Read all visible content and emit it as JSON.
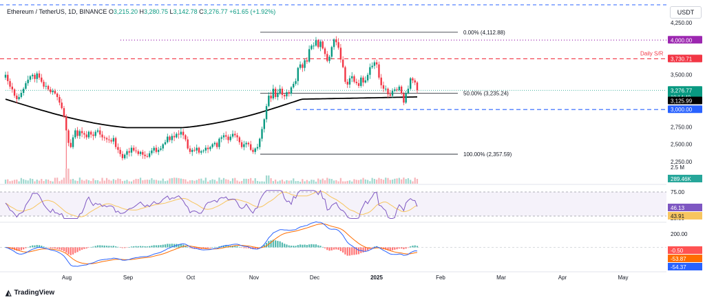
{
  "header": {
    "title": "Ethereum / TetherUS, 1D, BINANCE",
    "o_label": "O",
    "o": "3,215.20",
    "h_label": "H",
    "h": "3,280.75",
    "l_label": "L",
    "l": "3,142.78",
    "c_label": "C",
    "c": "3,276.77",
    "change": "+61.65 (+1.92%)",
    "currency": "USDT"
  },
  "brand": {
    "label": "TradingView",
    "logo": "tradingview-logo-icon"
  },
  "colors": {
    "up": "#089981",
    "down": "#f23645",
    "ma200": "#000000",
    "resistance": "#f23645",
    "support": "#2962ff",
    "psych": "#9c27b0",
    "rsi": "#7e57c2",
    "rsi_ma": "#f7c55f",
    "macd": "#2962ff",
    "signal": "#ff6d00"
  },
  "price_axis": {
    "ticks": [
      {
        "value": 4250,
        "label": "4,250.00"
      },
      {
        "value": 3500,
        "label": "3,500.00"
      },
      {
        "value": 2750,
        "label": "2,750.00"
      },
      {
        "value": 2500,
        "label": "2,500.00"
      },
      {
        "value": 2250,
        "label": "2,250.00"
      }
    ],
    "badges": [
      {
        "value": 4000,
        "label": "4,000.00",
        "color": "#9c27b0"
      },
      {
        "value": 3730.71,
        "label": "3,730.71",
        "color": "#f23645"
      },
      {
        "value": 3276.77,
        "label": "3,276.77",
        "sub": "19:14:48",
        "color": "#089981"
      },
      {
        "value": 3125.99,
        "label": "3,125.99",
        "color": "#000000"
      },
      {
        "value": 3000,
        "label": "3,000.00",
        "color": "#2962ff"
      }
    ]
  },
  "time_axis": [
    "Aug",
    "Sep",
    "Oct",
    "Nov",
    "Dec",
    "2025",
    "Feb",
    "Mar",
    "Apr",
    "May"
  ],
  "annotations": {
    "fib_0": "0.00% (4,112.88)",
    "fib_50": "50.00% (3,235.24)",
    "fib_100": "100.00% (2,357.59)",
    "daily_sr": "Daily S/R"
  },
  "volume": {
    "axis_label": "2.5 M",
    "last_label": "289.46K"
  },
  "rsi": {
    "levels": [
      "75.00",
      "25.00"
    ],
    "value": "46.13",
    "ma_value": "43.91"
  },
  "macd": {
    "levels": [
      "200.00"
    ],
    "hist": "-0.50",
    "signal": "-53.87",
    "macd": "-54.37"
  },
  "chart_data": {
    "type": "candlestick",
    "interval": "1D",
    "symbol": "ETHUSDT",
    "closes": [
      3500,
      3410,
      3330,
      3290,
      3200,
      3150,
      3180,
      3240,
      3300,
      3380,
      3430,
      3480,
      3500,
      3440,
      3520,
      3460,
      3400,
      3330,
      3340,
      3290,
      3250,
      3270,
      3230,
      3180,
      3100,
      3020,
      2900,
      2700,
      2520,
      2460,
      2600,
      2700,
      2620,
      2690,
      2660,
      2640,
      2600,
      2680,
      2640,
      2620,
      2680,
      2700,
      2640,
      2600,
      2590,
      2570,
      2560,
      2540,
      2590,
      2460,
      2420,
      2360,
      2300,
      2350,
      2400,
      2380,
      2450,
      2410,
      2400,
      2360,
      2390,
      2350,
      2330,
      2320,
      2370,
      2410,
      2450,
      2390,
      2420,
      2440,
      2500,
      2530,
      2610,
      2560,
      2620,
      2600,
      2650,
      2640,
      2680,
      2630,
      2570,
      2440,
      2390,
      2420,
      2410,
      2450,
      2380,
      2400,
      2410,
      2450,
      2430,
      2460,
      2500,
      2520,
      2460,
      2580,
      2600,
      2630,
      2610,
      2560,
      2610,
      2650,
      2630,
      2600,
      2530,
      2460,
      2500,
      2520,
      2500,
      2420,
      2390,
      2440,
      2460,
      2580,
      2720,
      2860,
      3050,
      3200,
      3160,
      3300,
      3180,
      3240,
      3300,
      3210,
      3190,
      3250,
      3230,
      3320,
      3370,
      3410,
      3600,
      3650,
      3600,
      3710,
      3690,
      3870,
      3920,
      3920,
      4000,
      3900,
      3980,
      3880,
      3800,
      3700,
      3760,
      3900,
      4010,
      3970,
      3890,
      3720,
      3610,
      3400,
      3360,
      3450,
      3480,
      3400,
      3380,
      3340,
      3460,
      3390,
      3420,
      3500,
      3610,
      3630,
      3680,
      3650,
      3460,
      3350,
      3300,
      3300,
      3220,
      3200,
      3270,
      3290,
      3280,
      3330,
      3230,
      3100,
      3240,
      3300,
      3450,
      3420,
      3390,
      3276.77
    ],
    "ma200_start": 3150,
    "ma200_end": 3125.99,
    "levels": {
      "fib_0": 4112.88,
      "fib_50": 3235.24,
      "fib_100": 2357.59,
      "daily_sr": 3730.71,
      "psych": 4000,
      "support": 3000
    },
    "ylim": [
      2150,
      4300
    ],
    "rsi_ylim": [
      15,
      85
    ],
    "macd_ylim": [
      -250,
      250
    ]
  }
}
